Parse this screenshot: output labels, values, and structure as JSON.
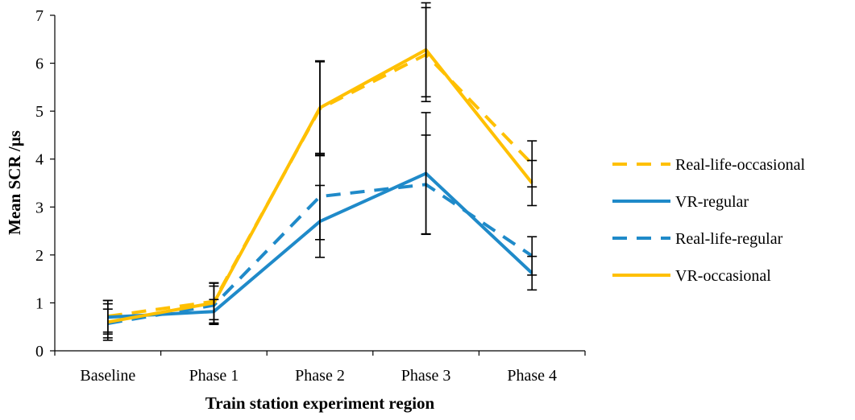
{
  "chart_data": {
    "type": "line",
    "title": "",
    "xlabel": "Train station experiment region",
    "ylabel": "Mean SCR /µs",
    "categories": [
      "Baseline",
      "Phase 1",
      "Phase 2",
      "Phase 3",
      "Phase 4"
    ],
    "ylim": [
      0,
      7
    ],
    "yticks": [
      0,
      1,
      2,
      3,
      4,
      5,
      6,
      7
    ],
    "grid": false,
    "legend_position": "right",
    "series": [
      {
        "name": "Real-life-occasional",
        "color": "#FFC000",
        "dash": "dashed",
        "values": [
          0.72,
          1.03,
          5.05,
          6.18,
          3.9
        ],
        "error": [
          0.33,
          0.38,
          0.98,
          0.98,
          0.48
        ]
      },
      {
        "name": "VR-regular",
        "color": "#1F8AC9",
        "dash": "solid",
        "values": [
          0.7,
          0.82,
          2.7,
          3.7,
          1.62
        ],
        "error": [
          0.35,
          0.25,
          0.75,
          1.27,
          0.35
        ]
      },
      {
        "name": "Real-life-regular",
        "color": "#1F8AC9",
        "dash": "dashed",
        "values": [
          0.57,
          0.95,
          3.22,
          3.47,
          1.98
        ],
        "error": [
          0.3,
          0.4,
          0.9,
          1.03,
          0.4
        ]
      },
      {
        "name": "VR-occasional",
        "color": "#FFC000",
        "dash": "solid",
        "values": [
          0.6,
          1.0,
          5.07,
          6.28,
          3.5
        ],
        "error": [
          0.38,
          0.42,
          0.98,
          0.98,
          0.47
        ]
      }
    ]
  }
}
